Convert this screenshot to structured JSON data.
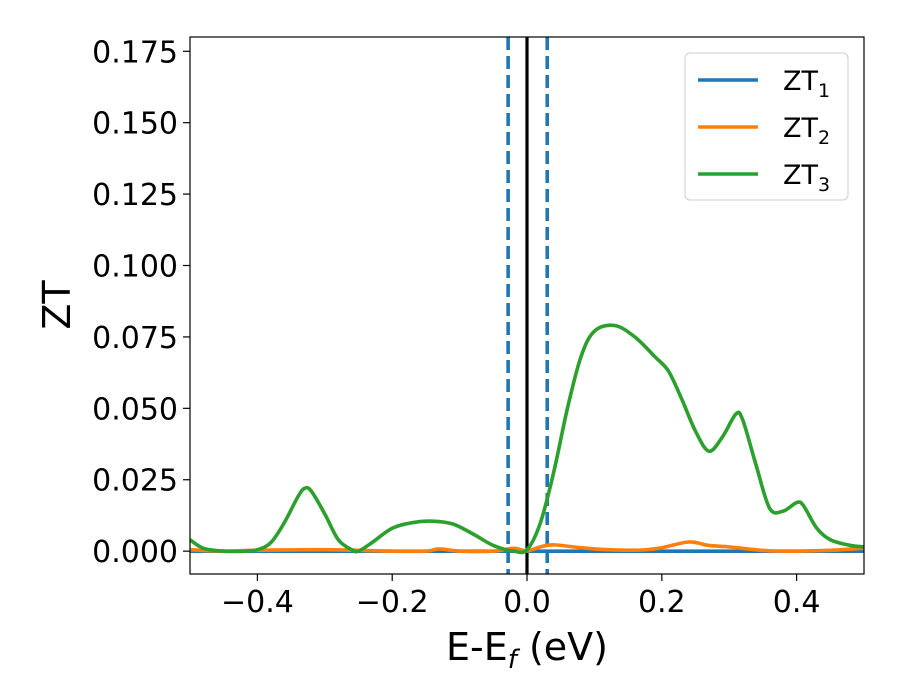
{
  "chart_data": {
    "type": "line",
    "xlabel": "E-E",
    "xlabel_sub": "f",
    "xlabel_unit": " (eV)",
    "ylabel": "ZT",
    "xlim": [
      -0.5,
      0.5
    ],
    "ylim": [
      -0.008,
      0.18
    ],
    "xticks": [
      -0.4,
      -0.2,
      0.0,
      0.2,
      0.4
    ],
    "xtick_labels": [
      "−0.4",
      "−0.2",
      "0.0",
      "0.2",
      "0.4"
    ],
    "yticks": [
      0.0,
      0.025,
      0.05,
      0.075,
      0.1,
      0.125,
      0.15,
      0.175
    ],
    "ytick_labels": [
      "0.000",
      "0.025",
      "0.050",
      "0.075",
      "0.100",
      "0.125",
      "0.150",
      "0.175"
    ],
    "grid": false,
    "legend_position": "top-right",
    "series": [
      {
        "name": "ZT",
        "name_sub": "1",
        "color": "#1f77b4",
        "x": [
          -0.5,
          0.5
        ],
        "y": [
          0.0,
          0.0
        ]
      },
      {
        "name": "ZT",
        "name_sub": "2",
        "color": "#ff7f0e",
        "x": [
          -0.5,
          -0.45,
          -0.4,
          -0.3,
          -0.2,
          -0.15,
          -0.13,
          -0.1,
          -0.05,
          -0.02,
          0.0,
          0.02,
          0.04,
          0.08,
          0.12,
          0.17,
          0.2,
          0.24,
          0.27,
          0.3,
          0.33,
          0.36,
          0.4,
          0.45,
          0.5
        ],
        "y": [
          0.0005,
          0.0,
          0.0003,
          0.0005,
          0.0,
          0.0,
          0.0008,
          0.0,
          0.0,
          0.001,
          0.0001,
          0.0015,
          0.0022,
          0.0012,
          0.0005,
          0.0004,
          0.0012,
          0.0032,
          0.002,
          0.0015,
          0.0007,
          0.0001,
          0.0,
          0.0003,
          0.001
        ]
      },
      {
        "name": "ZT",
        "name_sub": "3",
        "color": "#2ca02c",
        "x": [
          -0.5,
          -0.48,
          -0.45,
          -0.42,
          -0.4,
          -0.38,
          -0.36,
          -0.34,
          -0.33,
          -0.32,
          -0.3,
          -0.28,
          -0.26,
          -0.25,
          -0.23,
          -0.2,
          -0.17,
          -0.14,
          -0.11,
          -0.08,
          -0.05,
          -0.02,
          0.0,
          0.02,
          0.04,
          0.06,
          0.08,
          0.1,
          0.13,
          0.16,
          0.19,
          0.21,
          0.23,
          0.25,
          0.27,
          0.29,
          0.31,
          0.32,
          0.34,
          0.36,
          0.38,
          0.4,
          0.41,
          0.43,
          0.45,
          0.48,
          0.5
        ],
        "y": [
          0.004,
          0.001,
          0.0,
          0.0,
          0.0005,
          0.003,
          0.01,
          0.019,
          0.022,
          0.021,
          0.013,
          0.004,
          0.0005,
          0.0,
          0.003,
          0.008,
          0.01,
          0.0105,
          0.0095,
          0.006,
          0.002,
          0.0,
          0.0005,
          0.01,
          0.028,
          0.05,
          0.068,
          0.077,
          0.079,
          0.075,
          0.068,
          0.063,
          0.053,
          0.042,
          0.035,
          0.04,
          0.048,
          0.046,
          0.03,
          0.015,
          0.014,
          0.017,
          0.016,
          0.008,
          0.004,
          0.002,
          0.0015
        ]
      }
    ],
    "vlines": [
      {
        "x": 0.0,
        "color": "#000000",
        "style": "solid"
      },
      {
        "x": -0.028,
        "color": "#1f77b4",
        "style": "dashed"
      },
      {
        "x": 0.03,
        "color": "#1f77b4",
        "style": "dashed"
      }
    ]
  }
}
